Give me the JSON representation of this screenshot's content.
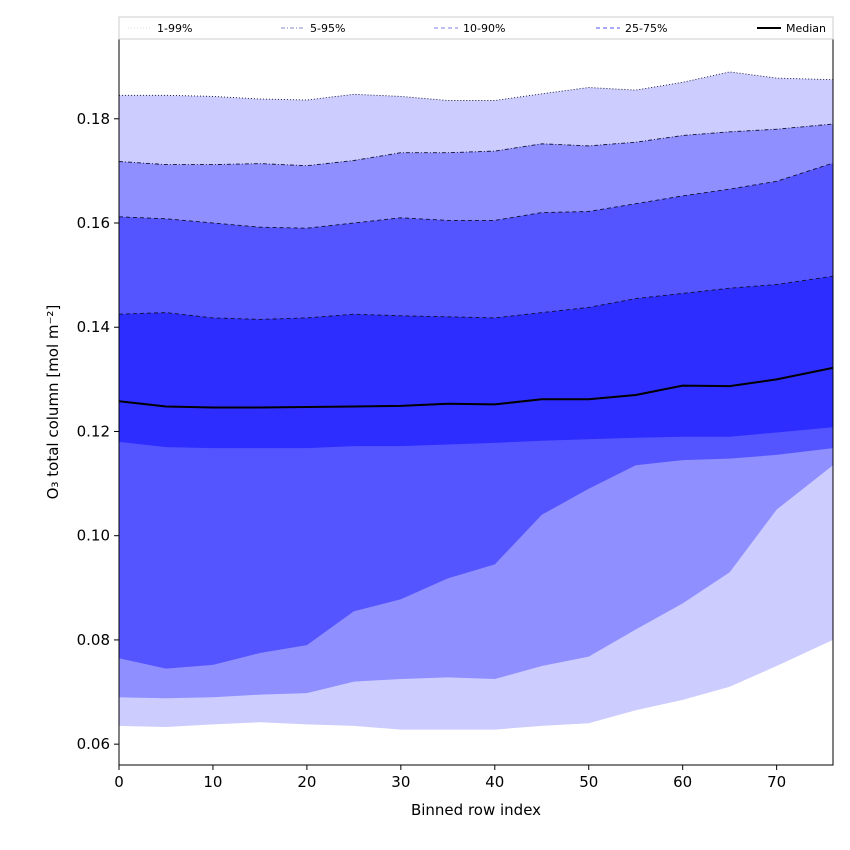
{
  "chart_data": {
    "type": "area",
    "title": "",
    "xlabel": "Binned row index",
    "ylabel": "O₃ total column [mol m⁻²]",
    "xlim": [
      0,
      76
    ],
    "ylim": [
      0.056,
      0.1955
    ],
    "grid": false,
    "legend_position": "top",
    "x_ticks": [
      0,
      10,
      20,
      30,
      40,
      50,
      60,
      70
    ],
    "y_ticks": [
      0.06,
      0.08,
      0.1,
      0.12,
      0.14,
      0.16,
      0.18
    ],
    "y_tick_labels": [
      "0.06",
      "0.08",
      "0.10",
      "0.12",
      "0.14",
      "0.16",
      "0.18"
    ],
    "x": [
      0,
      5,
      10,
      15,
      20,
      25,
      30,
      35,
      40,
      45,
      50,
      55,
      60,
      65,
      70,
      76
    ],
    "bands": [
      {
        "name": "1-99%",
        "color": "#ccccff",
        "line_color": "#dddddd",
        "lower": [
          0.0635,
          0.0633,
          0.0638,
          0.0642,
          0.0638,
          0.0635,
          0.0628,
          0.0628,
          0.0628,
          0.0635,
          0.064,
          0.0665,
          0.0685,
          0.071,
          0.075,
          0.08
        ],
        "upper": [
          0.1845,
          0.1845,
          0.1843,
          0.1838,
          0.1836,
          0.1847,
          0.1843,
          0.1835,
          0.1835,
          0.1848,
          0.186,
          0.1855,
          0.187,
          0.189,
          0.1878,
          0.1875
        ]
      },
      {
        "name": "5-95%",
        "color": "#8f8fff",
        "line_color": "#8888cc",
        "lower": [
          0.069,
          0.0688,
          0.069,
          0.0695,
          0.0698,
          0.072,
          0.0725,
          0.0728,
          0.0725,
          0.075,
          0.0768,
          0.082,
          0.087,
          0.093,
          0.105,
          0.1135
        ],
        "upper": [
          0.1718,
          0.1712,
          0.1712,
          0.1714,
          0.171,
          0.172,
          0.1735,
          0.1735,
          0.1738,
          0.1752,
          0.1748,
          0.1755,
          0.1768,
          0.1775,
          0.178,
          0.179
        ]
      },
      {
        "name": "10-90%",
        "color": "#5555ff",
        "line_color": "#7f7fee",
        "lower": [
          0.0765,
          0.0745,
          0.0752,
          0.0775,
          0.079,
          0.0855,
          0.0878,
          0.0918,
          0.0945,
          0.104,
          0.109,
          0.1135,
          0.1145,
          0.1148,
          0.1155,
          0.1168
        ],
        "upper": [
          0.1612,
          0.1608,
          0.16,
          0.1592,
          0.159,
          0.16,
          0.161,
          0.1605,
          0.1605,
          0.162,
          0.1622,
          0.1637,
          0.1652,
          0.1665,
          0.168,
          0.1715
        ]
      },
      {
        "name": "25-75%",
        "color": "#2d2dff",
        "line_color": "#5555ee",
        "lower": [
          0.118,
          0.117,
          0.1168,
          0.1168,
          0.1168,
          0.1172,
          0.1172,
          0.1175,
          0.1178,
          0.1182,
          0.1185,
          0.1188,
          0.119,
          0.119,
          0.1198,
          0.1208
        ],
        "upper": [
          0.1425,
          0.1428,
          0.1418,
          0.1415,
          0.1418,
          0.1425,
          0.1422,
          0.142,
          0.1418,
          0.1428,
          0.1438,
          0.1455,
          0.1465,
          0.1475,
          0.1482,
          0.1498
        ]
      }
    ],
    "median": {
      "name": "Median",
      "color": "#000000",
      "values": [
        0.1258,
        0.1248,
        0.1246,
        0.1246,
        0.1247,
        0.1248,
        0.1249,
        0.1253,
        0.1252,
        0.1262,
        0.1262,
        0.127,
        0.1288,
        0.1287,
        0.13,
        0.1322
      ]
    },
    "legend": [
      {
        "label": "1-99%",
        "color": "#dddddd",
        "style": "dotted"
      },
      {
        "label": "5-95%",
        "color": "#8888cc",
        "style": "dashdot"
      },
      {
        "label": "10-90%",
        "color": "#7f7fee",
        "style": "dashed"
      },
      {
        "label": "25-75%",
        "color": "#5555ee",
        "style": "dashed"
      },
      {
        "label": "Median",
        "color": "#000000",
        "style": "solid"
      }
    ]
  }
}
